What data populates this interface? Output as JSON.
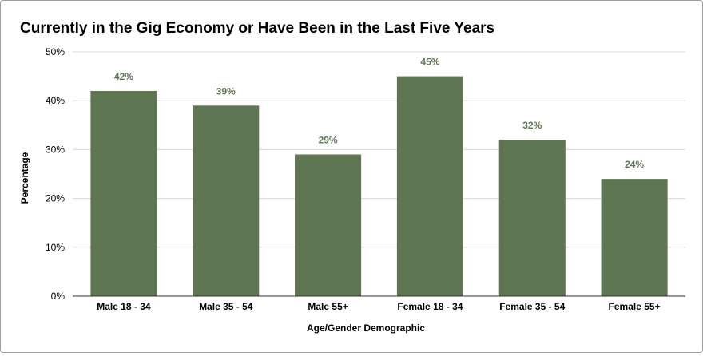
{
  "chart_data": {
    "type": "bar",
    "title": "Currently in the Gig Economy or Have Been in the Last Five Years",
    "xlabel": "Age/Gender Demographic",
    "ylabel": "Percentage",
    "categories": [
      "Male 18 - 34",
      "Male 35 - 54",
      "Male 55+",
      "Female 18 - 34",
      "Female 35 - 54",
      "Female 55+"
    ],
    "values": [
      42,
      39,
      29,
      45,
      32,
      24
    ],
    "data_labels": [
      "42%",
      "39%",
      "29%",
      "45%",
      "32%",
      "24%"
    ],
    "ylim": [
      0,
      50
    ],
    "yticks": [
      0,
      10,
      20,
      30,
      40,
      50
    ],
    "ytick_labels": [
      "0%",
      "10%",
      "20%",
      "30%",
      "40%",
      "50%"
    ],
    "grid": true,
    "legend": "none",
    "bar_color": "#5e7752",
    "label_color": "#5e7752",
    "gridline_color": "#d9d9d9",
    "axis_color": "#333333",
    "text_color": "#000000"
  }
}
